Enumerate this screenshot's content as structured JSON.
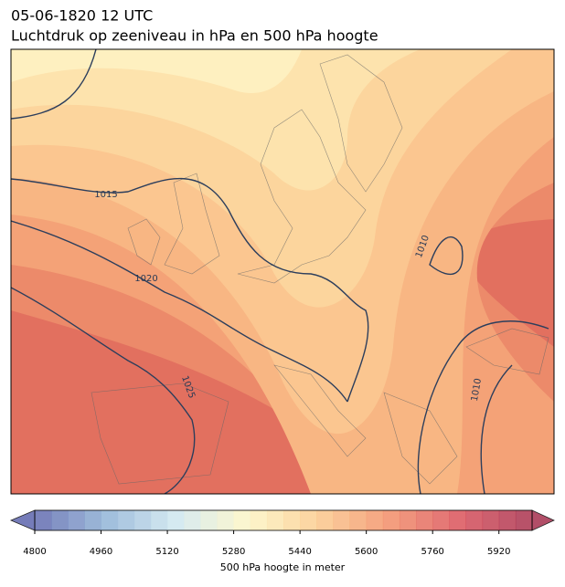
{
  "header": {
    "title": "05-06-1820 12 UTC",
    "subtitle": "Luchtdruk op zeeniveau in hPa en 500 hPa hoogte"
  },
  "map": {
    "contour_labels": [
      "1015",
      "1020",
      "1025",
      "1010",
      "1010"
    ]
  },
  "colorbar": {
    "range": [
      4800,
      6000
    ],
    "step": 40,
    "ticks": [
      4800,
      4960,
      5120,
      5280,
      5440,
      5600,
      5760,
      5920
    ],
    "colors": [
      "#5e66ad",
      "#8fb2d6",
      "#cfe7ef",
      "#fdf6c4",
      "#fbc98c",
      "#f28e68",
      "#d9505a",
      "#a5304e"
    ],
    "label": "500 hPa hoogte in meter"
  }
}
